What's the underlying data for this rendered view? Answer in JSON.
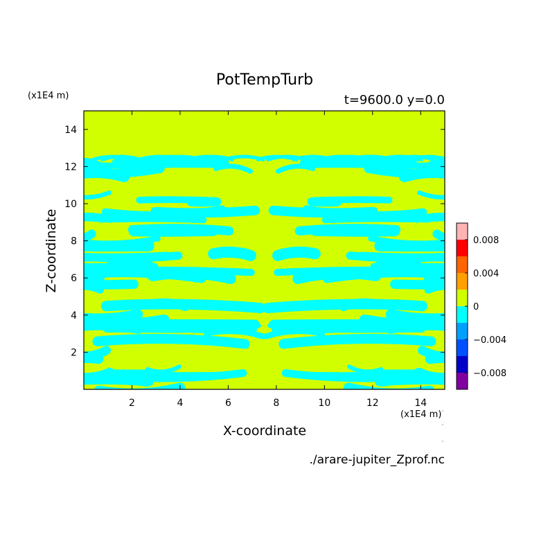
{
  "chart_data": {
    "type": "heatmap",
    "title": "PotTempTurb",
    "subtitle": "t=9600.0 y=0.0",
    "xlabel": "X-coordinate",
    "ylabel": "Z-coordinate",
    "x_unit": "(x1E4 m)",
    "y_unit": "(x1E4 m)",
    "source": "./arare-jupiter_Zprof.nc",
    "xlim": [
      0,
      15
    ],
    "ylim": [
      0,
      15
    ],
    "x_ticks": [
      2,
      4,
      6,
      8,
      10,
      12,
      14
    ],
    "y_ticks": [
      2,
      4,
      6,
      8,
      10,
      12,
      14
    ],
    "field_top_z": 12.5,
    "colorbar": {
      "levels": [
        -0.01,
        -0.008,
        -0.006,
        -0.004,
        -0.002,
        0,
        0.002,
        0.004,
        0.006,
        0.008,
        0.01
      ],
      "colors": [
        "#8000a0",
        "#0000c8",
        "#0050ff",
        "#00a0ff",
        "#00ffff",
        "#d2ff00",
        "#ffa000",
        "#ff6400",
        "#ff0000",
        "#ffb4b4"
      ],
      "tick_values": [
        0.008,
        0.004,
        0,
        -0.004,
        -0.008
      ],
      "tick_labels": [
        "0.008",
        "0.004",
        "0",
        "−0.004",
        "−0.008"
      ]
    },
    "dominant_values": {
      "positive_band_color": "#d2ff00",
      "negative_band_color": "#00ffff"
    }
  }
}
